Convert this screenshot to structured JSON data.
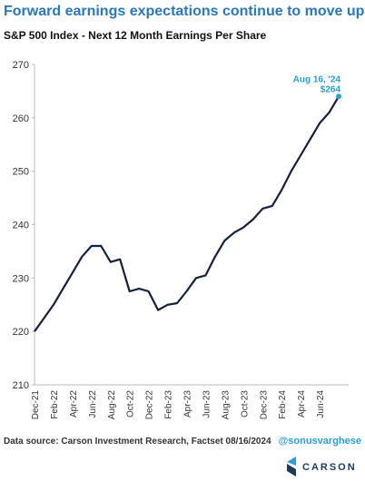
{
  "chart_data": {
    "type": "line",
    "title": "Forward earnings expectations continue to move up",
    "subtitle": "S&P 500 Index - Next 12 Month Earnings Per Share",
    "categories": [
      "Dec-21",
      null,
      "Feb-22",
      null,
      "Apr-22",
      null,
      "Jun-22",
      null,
      "Aug-22",
      null,
      "Oct-22",
      null,
      "Dec-22",
      null,
      "Feb-23",
      null,
      "Apr-23",
      null,
      "Jun-23",
      null,
      "Aug-23",
      null,
      "Oct-23",
      null,
      "Dec-23",
      null,
      "Feb-24",
      null,
      "Apr-24",
      null,
      "Jun-24",
      null,
      null
    ],
    "series": [
      {
        "name": "S&P 500 Index - Next 12 Month EPS",
        "color": "#14213d",
        "values": [
          220,
          222.5,
          225,
          228,
          231,
          234,
          236,
          236,
          233,
          233.5,
          227.5,
          228,
          227.5,
          224,
          225,
          225.3,
          227.5,
          230,
          230.5,
          234,
          237,
          238.5,
          239.5,
          241,
          243,
          243.5,
          246.5,
          250,
          253,
          256,
          259,
          261,
          264
        ]
      }
    ],
    "ylim": [
      210,
      270
    ],
    "yticks": [
      210,
      220,
      230,
      240,
      250,
      260,
      270
    ],
    "annotation": {
      "date": "Aug 16, '24",
      "label": "$264",
      "color": "#2a9fd6"
    },
    "source": "Data source: Carson Investment Research, Factset  08/16/2024",
    "handle": "@sonusvarghese",
    "logo": "CARSON"
  }
}
